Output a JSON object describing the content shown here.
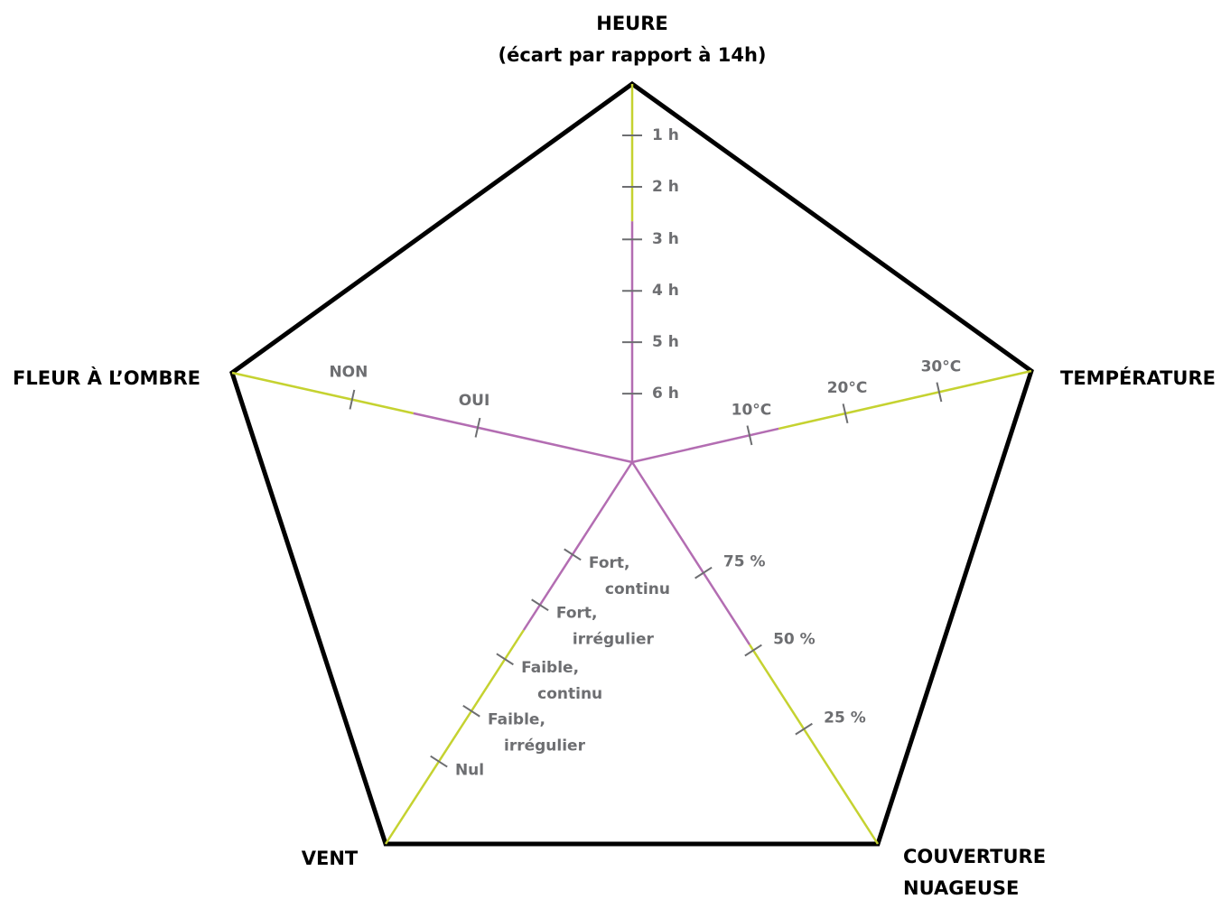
{
  "axes": [
    {
      "label": [
        "HEURE",
        "(écart par rapport à 14h)"
      ],
      "ticks": [
        [
          "1 h"
        ],
        [
          "2 h"
        ],
        [
          "3 h"
        ],
        [
          "4 h"
        ],
        [
          "5 h"
        ],
        [
          "6 h"
        ]
      ]
    },
    {
      "label": [
        "TEMPÉRATURE"
      ],
      "ticks": [
        [
          "10°C"
        ],
        [
          "20°C"
        ],
        [
          "30°C"
        ]
      ]
    },
    {
      "label": [
        "COUVERTURE",
        "NUAGEUSE"
      ],
      "ticks": [
        [
          "75 %"
        ],
        [
          "50 %"
        ],
        [
          "25 %"
        ]
      ]
    },
    {
      "label": [
        "VENT"
      ],
      "ticks": [
        [
          "Fort,",
          "continu"
        ],
        [
          "Fort,",
          "irrégulier"
        ],
        [
          "Faible,",
          "continu"
        ],
        [
          "Faible,",
          "irrégulier"
        ],
        [
          "Nul"
        ]
      ]
    },
    {
      "label": [
        "FLEUR À L’OMBRE"
      ],
      "ticks": [
        [
          "OUI"
        ],
        [
          "NON"
        ]
      ]
    }
  ]
}
